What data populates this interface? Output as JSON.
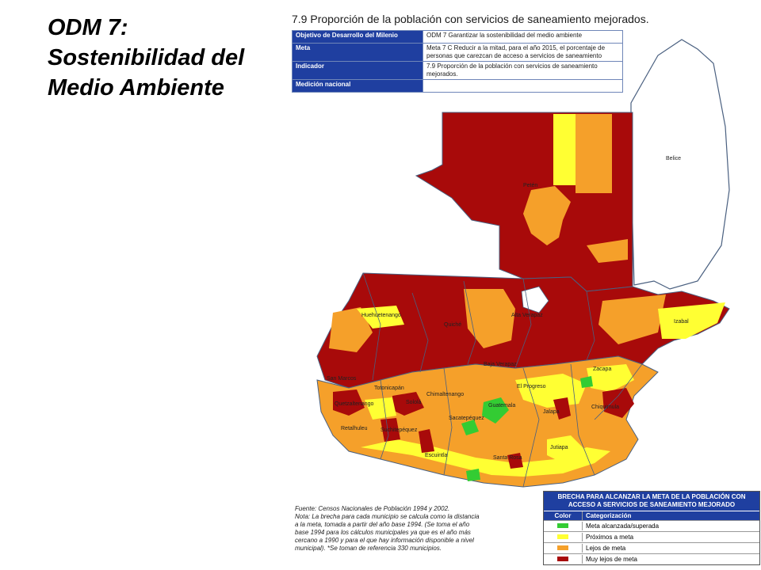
{
  "slide": {
    "title_lines": [
      "ODM 7:",
      "Sostenibilidad del",
      "Medio Ambiente"
    ]
  },
  "map_title": "7.9 Proporción de la población con servicios de saneamiento mejorados.",
  "info_table": {
    "rows": [
      {
        "key": "Objetivo de Desarrollo del Milenio",
        "value": "ODM 7 Garantizar la sostenibilidad del medio ambiente"
      },
      {
        "key": "Meta",
        "value": "Meta 7 C Reducir a la mitad, para el año 2015, el porcentaje de personas que carezcan de acceso a servicios de saneamiento"
      },
      {
        "key": "Indicador",
        "value": "7.9 Proporción de la población con servicios de saneamiento mejorados."
      },
      {
        "key": "Medición nacional",
        "value": ""
      }
    ]
  },
  "map_labels": {
    "belice": "Belice",
    "peten": "Petén",
    "huehuetenango": "Huehuetenango",
    "quiche": "Quiché",
    "alta_verapaz": "Alta Verapaz",
    "izabal": "Izabal",
    "baja_verapaz": "Baja Verapaz",
    "zacapa": "Zacapa",
    "el_progreso": "El Progreso",
    "san_marcos": "San Marcos",
    "totonicapan": "Totonicapán",
    "quetzaltenango": "Quetzaltenango",
    "solola": "Sololá",
    "chimaltenango": "Chimaltenango",
    "guatemala": "Guatemala",
    "sacatepequez": "Sacatepéquez",
    "jalapa": "Jalapa",
    "chiquimula": "Chiquimula",
    "retalhuleu": "Retalhuleu",
    "suchitepequez": "Suchitepéquez",
    "escuintla": "Escuintla",
    "santa_rosa": "Santa Rosa",
    "jutiapa": "Jutiapa"
  },
  "source": {
    "lines": [
      "Fuente: Censos Nacionales de Población 1994 y 2002.",
      "Nota: La brecha para cada municipio se calcula como la distancia",
      "a la meta,  tomada a partir del año base 1994. (Se toma el año",
      "base 1994 para los cálculos municipales ya que es el año más",
      "cercano a 1990 y para el que hay información disponible a nivel",
      "municipal). *Se toman de referencia 330 municipios."
    ]
  },
  "legend": {
    "title": "BRECHA PARA ALCANZAR LA META DE LA POBLACIÓN CON ACCESO A SERVICIOS DE SANEAMIENTO MEJORADO",
    "col_color": "Color",
    "col_cat": "Categorización",
    "items": [
      {
        "label": "Meta alcanzada/superada",
        "color": "#33cc33"
      },
      {
        "label": "Próximos a meta",
        "color": "#ffff33"
      },
      {
        "label": "Lejos de meta",
        "color": "#f5a02a"
      },
      {
        "label": "Muy lejos de meta",
        "color": "#a80a0a"
      }
    ]
  },
  "colors": {
    "muy_lejos": "#a80a0a",
    "lejos": "#f5a02a",
    "proximos": "#ffff33",
    "alcanzada": "#33cc33",
    "header_blue": "#1f3fa0"
  }
}
